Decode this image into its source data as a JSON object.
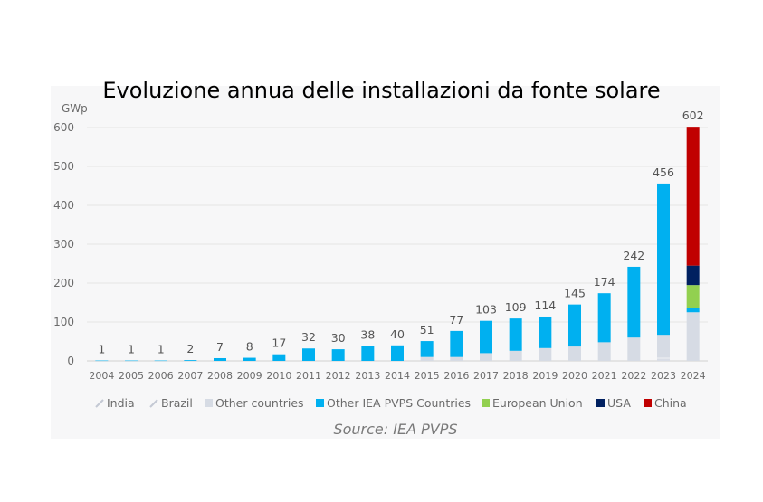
{
  "chart_data": {
    "type": "bar",
    "stacked": true,
    "title": "Evoluzione annua delle installazioni da fonte solare",
    "ylabel": "GWp",
    "ylim": [
      0,
      600
    ],
    "yticks": [
      0,
      100,
      200,
      300,
      400,
      500,
      600
    ],
    "grid": true,
    "legend_position": "bottom",
    "source": "Source: IEA PVPS",
    "categories": [
      "2004",
      "2005",
      "2006",
      "2007",
      "2008",
      "2009",
      "2010",
      "2011",
      "2012",
      "2013",
      "2014",
      "2015",
      "2016",
      "2017",
      "2018",
      "2019",
      "2020",
      "2021",
      "2022",
      "2023",
      "2024"
    ],
    "totals": [
      1,
      1,
      1,
      2,
      7,
      8,
      17,
      32,
      30,
      38,
      40,
      51,
      77,
      103,
      109,
      114,
      145,
      174,
      242,
      456,
      602
    ],
    "series": [
      {
        "name": "India",
        "color": "#d9dde6",
        "values": [
          0,
          0,
          0,
          0,
          0,
          0,
          0,
          0,
          0,
          0,
          0,
          0,
          0,
          0,
          0,
          0,
          0,
          0,
          0,
          5,
          0
        ]
      },
      {
        "name": "Brazil",
        "color": "#e3e6ec",
        "values": [
          0,
          0,
          0,
          0,
          0,
          0,
          0,
          0,
          0,
          0,
          0,
          0,
          0,
          0,
          0,
          0,
          0,
          0,
          0,
          4,
          0
        ]
      },
      {
        "name": "Other countries",
        "color": "#d6dbe4",
        "values": [
          0,
          0,
          0,
          0,
          0,
          0,
          0,
          0,
          0,
          0,
          0,
          10,
          10,
          20,
          26,
          33,
          37,
          48,
          60,
          58,
          125
        ]
      },
      {
        "name": "Other IEA PVPS Countries",
        "color": "#00b0f0",
        "values": [
          1,
          1,
          1,
          2,
          7,
          8,
          17,
          32,
          30,
          38,
          40,
          41,
          67,
          83,
          83,
          81,
          108,
          126,
          182,
          389,
          10
        ]
      },
      {
        "name": "European Union",
        "color": "#92d050",
        "values": [
          0,
          0,
          0,
          0,
          0,
          0,
          0,
          0,
          0,
          0,
          0,
          0,
          0,
          0,
          0,
          0,
          0,
          0,
          0,
          0,
          60
        ]
      },
      {
        "name": "USA",
        "color": "#002060",
        "values": [
          0,
          0,
          0,
          0,
          0,
          0,
          0,
          0,
          0,
          0,
          0,
          0,
          0,
          0,
          0,
          0,
          0,
          0,
          0,
          0,
          50
        ]
      },
      {
        "name": "China",
        "color": "#c00000",
        "values": [
          0,
          0,
          0,
          0,
          0,
          0,
          0,
          0,
          0,
          0,
          0,
          0,
          0,
          0,
          0,
          0,
          0,
          0,
          0,
          0,
          357
        ]
      }
    ]
  }
}
